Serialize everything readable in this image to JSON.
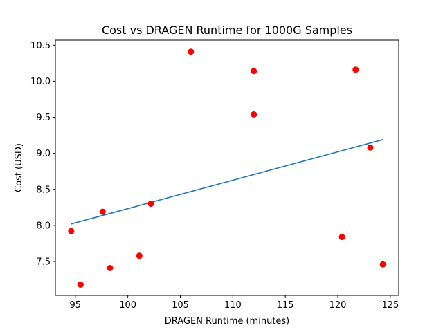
{
  "chart_data": {
    "type": "scatter",
    "title": "Cost vs DRAGEN Runtime for 1000G Samples",
    "xlabel": "DRAGEN Runtime (minutes)",
    "ylabel": "Cost (USD)",
    "xlim": [
      93.1,
      125.8
    ],
    "ylim": [
      7.03,
      10.57
    ],
    "xticks": [
      95,
      100,
      105,
      110,
      115,
      120,
      125
    ],
    "yticks": [
      7.5,
      8.0,
      8.5,
      9.0,
      9.5,
      10.0,
      10.5
    ],
    "grid": false,
    "series": [
      {
        "type": "scatter",
        "color": "#ff0000",
        "points": [
          {
            "x": 94.6,
            "y": 7.92
          },
          {
            "x": 95.5,
            "y": 7.18
          },
          {
            "x": 97.6,
            "y": 8.19
          },
          {
            "x": 98.3,
            "y": 7.41
          },
          {
            "x": 101.1,
            "y": 7.58
          },
          {
            "x": 102.2,
            "y": 8.3
          },
          {
            "x": 106.0,
            "y": 10.41
          },
          {
            "x": 112.0,
            "y": 10.14
          },
          {
            "x": 112.0,
            "y": 9.54
          },
          {
            "x": 120.4,
            "y": 7.84
          },
          {
            "x": 121.7,
            "y": 10.16
          },
          {
            "x": 123.1,
            "y": 9.08
          },
          {
            "x": 124.3,
            "y": 7.46
          }
        ]
      },
      {
        "type": "line",
        "color": "#1f77b4",
        "points": [
          {
            "x": 94.6,
            "y": 8.02
          },
          {
            "x": 124.3,
            "y": 9.19
          }
        ]
      }
    ]
  }
}
